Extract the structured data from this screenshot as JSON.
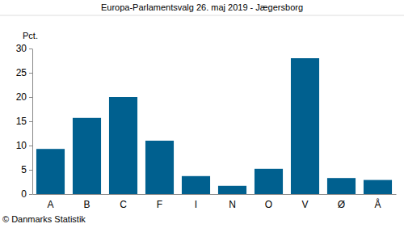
{
  "chart_data": {
    "type": "bar",
    "title": "Europa-Parlamentsvalg 26. maj 2019 - Jægersborg",
    "ylabel": "Pct.",
    "annotations": [
      "© Danmarks Statistik"
    ],
    "categories": [
      "A",
      "B",
      "C",
      "F",
      "I",
      "N",
      "O",
      "V",
      "Ø",
      "Å"
    ],
    "values": [
      9.3,
      15.7,
      20.0,
      11.0,
      3.7,
      1.7,
      5.2,
      28.0,
      3.3,
      2.9
    ],
    "color": "#00608f",
    "ylim": [
      0,
      30
    ],
    "yticks": [
      0,
      5,
      10,
      15,
      20,
      25,
      30
    ],
    "grid": false
  }
}
